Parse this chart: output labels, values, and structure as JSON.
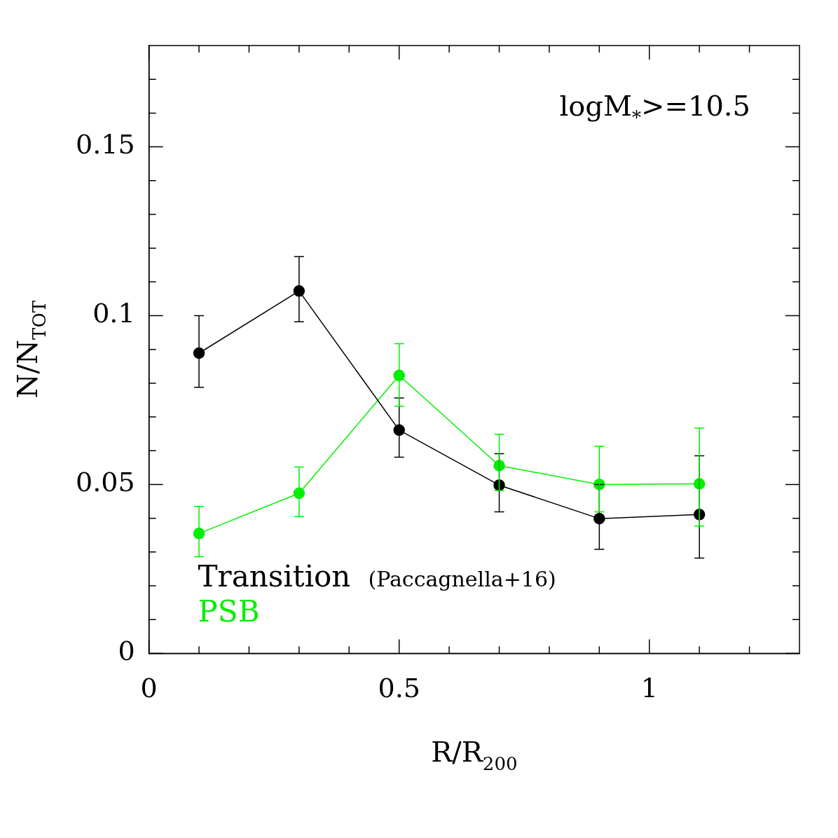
{
  "chart_data": {
    "type": "line",
    "xlabel": "R/R$_{200}$",
    "ylabel": "N/N$_{TOT}$",
    "x": [
      0.1,
      0.3,
      0.5,
      0.7,
      0.9,
      1.1
    ],
    "series": [
      {
        "name": "Transition",
        "color": "#000000",
        "values": [
          0.0889,
          0.1073,
          0.0661,
          0.0498,
          0.0399,
          0.0411
        ],
        "errors": [
          [
            0.0788,
            0.1
          ],
          [
            0.0982,
            0.1175
          ],
          [
            0.0581,
            0.0756
          ],
          [
            0.0419,
            0.0591
          ],
          [
            0.0308,
            0.05
          ],
          [
            0.0282,
            0.0585
          ]
        ]
      },
      {
        "name": "PSB",
        "color": "#00ee00",
        "values": [
          0.0355,
          0.0474,
          0.0823,
          0.0556,
          0.05,
          0.0502
        ],
        "errors": [
          [
            0.0286,
            0.0435
          ],
          [
            0.0405,
            0.0552
          ],
          [
            0.0732,
            0.0917
          ],
          [
            0.0482,
            0.0649
          ],
          [
            0.0419,
            0.0613
          ],
          [
            0.0377,
            0.0667
          ]
        ]
      }
    ],
    "xlim": [
      0,
      1.3
    ],
    "ylim": [
      0,
      0.18
    ],
    "xticks": [
      0,
      {
        "value": 0.1,
        "label": null
      },
      {
        "value": 0.2,
        "label": null
      },
      {
        "value": 0.3,
        "label": null
      },
      {
        "value": 0.4,
        "label": null
      },
      0.5,
      {
        "value": 0.6,
        "label": null
      },
      {
        "value": 0.7,
        "label": null
      },
      {
        "value": 0.8,
        "label": null
      },
      {
        "value": 0.9,
        "label": null
      },
      1,
      {
        "value": 1.1,
        "label": null
      },
      {
        "value": 1.2,
        "label": null
      }
    ],
    "yticks": [
      0,
      {
        "value": 0.01,
        "label": null
      },
      {
        "value": 0.02,
        "label": null
      },
      {
        "value": 0.03,
        "label": null
      },
      {
        "value": 0.04,
        "label": null
      },
      0.05,
      {
        "value": 0.06,
        "label": null
      },
      {
        "value": 0.07,
        "label": null
      },
      {
        "value": 0.08,
        "label": null
      },
      {
        "value": 0.09,
        "label": null
      },
      0.1,
      {
        "value": 0.11,
        "label": null
      },
      {
        "value": 0.12,
        "label": null
      },
      {
        "value": 0.13,
        "label": null
      },
      {
        "value": 0.14,
        "label": null
      },
      0.15,
      {
        "value": 0.16,
        "label": null
      },
      {
        "value": 0.17,
        "label": null
      }
    ],
    "marker": "circle",
    "line_style": "solid",
    "grid": false,
    "legend": "bottom left",
    "annotations": [
      "logM$_{*}$>=10.5",
      "(Paccagnella+16)"
    ]
  }
}
